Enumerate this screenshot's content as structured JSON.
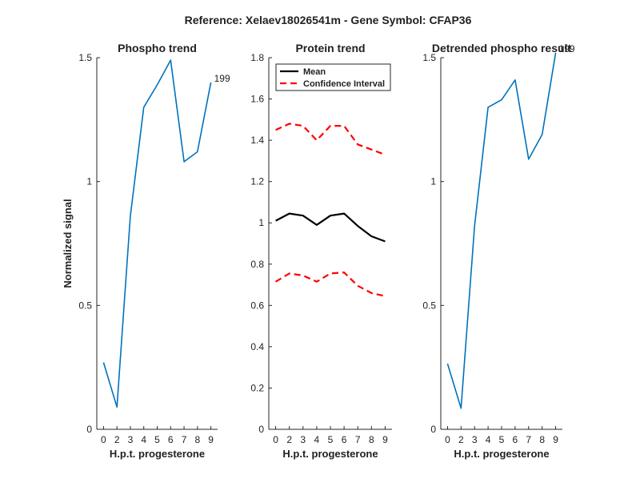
{
  "figure": {
    "suptitle": "Reference:  Xelaev18026541m - Gene Symbol:  CFAP36",
    "ylabel": "Normalized signal"
  },
  "colors": {
    "phospho": "#0072BD",
    "mean": "#000000",
    "ci": "#FF0000",
    "axis": "#262626"
  },
  "chart_data": [
    {
      "type": "line",
      "title": "Phospho trend",
      "xlabel": "H.p.t. progesterone",
      "ylabel": "Normalized signal",
      "categories": [
        "0",
        "2",
        "3",
        "4",
        "5",
        "6",
        "7",
        "8",
        "9"
      ],
      "ylim": [
        0,
        1.5
      ],
      "yticks": [
        "0",
        "0.5",
        "1",
        "1.5"
      ],
      "series": [
        {
          "values": [
            0.27,
            0.09,
            0.86,
            1.3,
            1.39,
            1.49,
            1.08,
            1.12,
            1.4
          ]
        }
      ],
      "end_label": "199",
      "grid": false
    },
    {
      "type": "line",
      "title": "Protein trend",
      "xlabel": "H.p.t. progesterone",
      "categories": [
        "0",
        "2",
        "3",
        "4",
        "5",
        "6",
        "7",
        "8",
        "9"
      ],
      "ylim": [
        0,
        1.8
      ],
      "yticks": [
        "0",
        "0.2",
        "0.4",
        "0.6",
        "0.8",
        "1",
        "1.2",
        "1.4",
        "1.6",
        "1.8"
      ],
      "series": [
        {
          "name": "Mean",
          "values": [
            1.01,
            1.045,
            1.035,
            0.99,
            1.035,
            1.045,
            0.985,
            0.935,
            0.91
          ]
        },
        {
          "name": "Confidence Interval",
          "values": [
            1.45,
            1.48,
            1.47,
            1.4,
            1.47,
            1.47,
            1.38,
            1.355,
            1.33
          ]
        },
        {
          "values": [
            0.715,
            0.755,
            0.745,
            0.715,
            0.755,
            0.76,
            0.695,
            0.66,
            0.645
          ]
        }
      ],
      "legend": "top-right",
      "grid": false
    },
    {
      "type": "line",
      "title": "Detrended phospho result",
      "xlabel": "H.p.t. progesterone",
      "categories": [
        "0",
        "2",
        "3",
        "4",
        "5",
        "6",
        "7",
        "8",
        "9"
      ],
      "ylim": [
        0,
        1.5
      ],
      "yticks": [
        "0",
        "0.5",
        "1",
        "1.5"
      ],
      "series": [
        {
          "values": [
            0.265,
            0.085,
            0.82,
            1.3,
            1.33,
            1.41,
            1.09,
            1.19,
            1.52
          ]
        }
      ],
      "end_label": "199",
      "grid": false
    }
  ]
}
